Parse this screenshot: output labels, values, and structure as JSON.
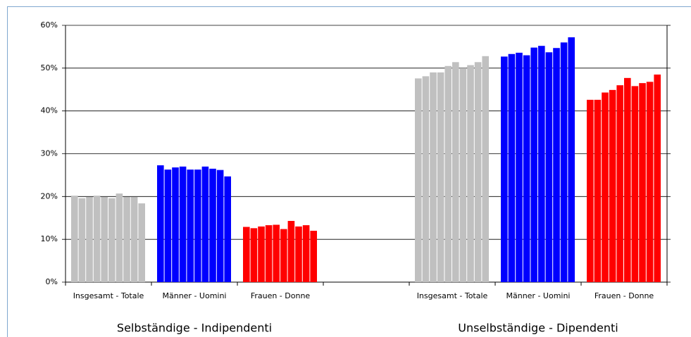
{
  "chart_data": {
    "type": "bar",
    "categories": [
      "Insgesamt - Totale",
      "Männer - Uomini",
      "Frauen - Donne",
      null,
      "Insgesamt - Totale",
      "Männer - Uomini",
      "Frauen - Donne"
    ],
    "colors": [
      "#c0c0c0",
      "#0000ff",
      "#ff0000",
      null,
      "#c0c0c0",
      "#0000ff",
      "#ff0000"
    ],
    "values": [
      [
        20.2,
        19.6,
        19.9,
        20.2,
        19.9,
        19.6,
        20.7,
        19.9,
        19.9,
        18.4
      ],
      [
        27.3,
        26.3,
        26.8,
        27.0,
        26.3,
        26.3,
        27.0,
        26.5,
        26.2,
        24.7
      ],
      [
        12.9,
        12.6,
        13.0,
        13.3,
        13.4,
        12.4,
        14.3,
        13.0,
        13.3,
        12.0
      ],
      [],
      [
        47.6,
        48.1,
        49.0,
        49.0,
        50.5,
        51.4,
        50.0,
        50.7,
        51.4,
        52.8
      ],
      [
        52.7,
        53.3,
        53.6,
        53.0,
        54.8,
        55.2,
        53.7,
        54.7,
        56.0,
        57.2
      ],
      [
        42.6,
        42.6,
        44.3,
        44.9,
        46.0,
        47.7,
        45.8,
        46.5,
        46.8,
        48.5
      ]
    ],
    "group_labels": [
      "Selbständige - Indipendenti",
      "Unselbständige - Dipendenti"
    ],
    "ylim": [
      0,
      60
    ],
    "yticks": [
      {
        "value": 0,
        "label": "0%"
      },
      {
        "value": 10,
        "label": "10%"
      },
      {
        "value": 20,
        "label": "20%"
      },
      {
        "value": 30,
        "label": "30%"
      },
      {
        "value": 40,
        "label": "40%"
      },
      {
        "value": 50,
        "label": "50%"
      },
      {
        "value": 60,
        "label": "60%"
      }
    ],
    "grid": true
  }
}
